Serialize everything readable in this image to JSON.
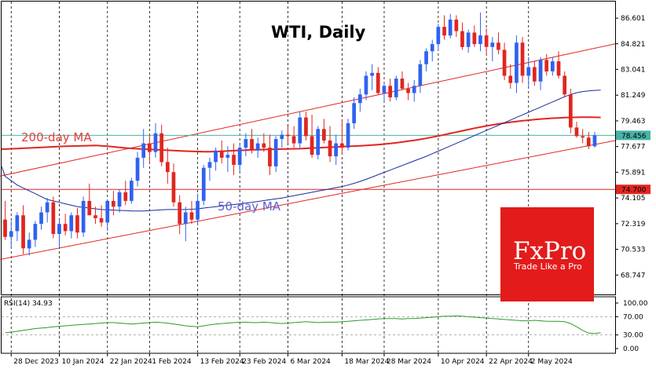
{
  "chart_data": [
    {
      "type": "candlestick",
      "title": "WTI, Daily",
      "y_ticks": [
        "86.601",
        "84.821",
        "83.041",
        "81.249",
        "79.463",
        "77.677",
        "75.891",
        "74.105",
        "72.319",
        "70.533",
        "68.747"
      ],
      "x_ticks": [
        "28 Dec 2023",
        "10 Jan 2024",
        "22 Jan 2024",
        "1 Feb 2024",
        "13 Feb 2024",
        "23 Feb 2024",
        "6 Mar 2024",
        "18 Mar 2024",
        "28 Mar 2024",
        "10 Apr 2024",
        "22 Apr 2024",
        "2 May 2024"
      ],
      "ylim": [
        67.4,
        87.7
      ],
      "current_price": "78.456",
      "reference_level": "74.700",
      "annotations": {
        "ma200_label": "200-day MA",
        "ma50_label": "50-day MA"
      },
      "candles": [
        {
          "o": 72.6,
          "h": 73.9,
          "l": 71.2,
          "c": 71.4
        },
        {
          "o": 71.4,
          "h": 72.5,
          "l": 70.6,
          "c": 71.8
        },
        {
          "o": 71.8,
          "h": 73.1,
          "l": 71.1,
          "c": 72.9
        },
        {
          "o": 72.9,
          "h": 73.6,
          "l": 70.2,
          "c": 70.6
        },
        {
          "o": 70.6,
          "h": 71.7,
          "l": 70.1,
          "c": 71.2
        },
        {
          "o": 71.2,
          "h": 72.5,
          "l": 70.7,
          "c": 72.3
        },
        {
          "o": 72.3,
          "h": 73.5,
          "l": 71.9,
          "c": 73.1
        },
        {
          "o": 73.1,
          "h": 74.1,
          "l": 72.4,
          "c": 73.8
        },
        {
          "o": 73.8,
          "h": 74.2,
          "l": 71.3,
          "c": 71.6
        },
        {
          "o": 71.6,
          "h": 72.6,
          "l": 70.6,
          "c": 72.3
        },
        {
          "o": 72.3,
          "h": 73.0,
          "l": 71.5,
          "c": 71.8
        },
        {
          "o": 71.8,
          "h": 73.1,
          "l": 71.3,
          "c": 72.9
        },
        {
          "o": 72.9,
          "h": 73.4,
          "l": 71.3,
          "c": 71.7
        },
        {
          "o": 71.7,
          "h": 74.2,
          "l": 71.4,
          "c": 73.9
        },
        {
          "o": 73.9,
          "h": 75.1,
          "l": 72.9,
          "c": 72.9
        },
        {
          "o": 72.9,
          "h": 73.5,
          "l": 72.3,
          "c": 72.7
        },
        {
          "o": 72.7,
          "h": 73.6,
          "l": 72.1,
          "c": 72.4
        },
        {
          "o": 72.4,
          "h": 74.0,
          "l": 71.8,
          "c": 73.9
        },
        {
          "o": 73.9,
          "h": 74.6,
          "l": 72.9,
          "c": 73.5
        },
        {
          "o": 73.5,
          "h": 74.7,
          "l": 73.1,
          "c": 74.5
        },
        {
          "o": 74.5,
          "h": 75.3,
          "l": 73.6,
          "c": 73.9
        },
        {
          "o": 73.9,
          "h": 75.5,
          "l": 73.7,
          "c": 75.3
        },
        {
          "o": 75.3,
          "h": 77.3,
          "l": 74.9,
          "c": 76.9
        },
        {
          "o": 76.9,
          "h": 78.9,
          "l": 76.2,
          "c": 77.9
        },
        {
          "o": 77.9,
          "h": 78.5,
          "l": 76.5,
          "c": 77.3
        },
        {
          "o": 77.3,
          "h": 79.3,
          "l": 76.9,
          "c": 78.6
        },
        {
          "o": 78.6,
          "h": 79.2,
          "l": 76.3,
          "c": 76.6
        },
        {
          "o": 76.6,
          "h": 77.6,
          "l": 75.1,
          "c": 75.9
        },
        {
          "o": 75.9,
          "h": 76.5,
          "l": 73.5,
          "c": 73.8
        },
        {
          "o": 73.8,
          "h": 74.3,
          "l": 71.6,
          "c": 72.3
        },
        {
          "o": 72.3,
          "h": 73.5,
          "l": 71.1,
          "c": 73.1
        },
        {
          "o": 73.1,
          "h": 73.9,
          "l": 72.3,
          "c": 72.6
        },
        {
          "o": 72.6,
          "h": 74.4,
          "l": 72.2,
          "c": 73.9
        },
        {
          "o": 73.9,
          "h": 76.4,
          "l": 73.6,
          "c": 76.2
        },
        {
          "o": 76.2,
          "h": 76.9,
          "l": 75.3,
          "c": 76.6
        },
        {
          "o": 76.6,
          "h": 77.6,
          "l": 76.0,
          "c": 77.4
        },
        {
          "o": 77.4,
          "h": 78.1,
          "l": 76.5,
          "c": 76.9
        },
        {
          "o": 76.9,
          "h": 77.7,
          "l": 75.9,
          "c": 77.1
        },
        {
          "o": 77.1,
          "h": 77.9,
          "l": 75.7,
          "c": 76.4
        },
        {
          "o": 76.4,
          "h": 77.8,
          "l": 75.9,
          "c": 77.6
        },
        {
          "o": 77.6,
          "h": 78.6,
          "l": 77.0,
          "c": 78.2
        },
        {
          "o": 78.2,
          "h": 78.9,
          "l": 77.2,
          "c": 77.4
        },
        {
          "o": 77.4,
          "h": 78.3,
          "l": 76.9,
          "c": 77.9
        },
        {
          "o": 77.9,
          "h": 78.6,
          "l": 77.3,
          "c": 77.6
        },
        {
          "o": 77.6,
          "h": 78.5,
          "l": 75.7,
          "c": 76.3
        },
        {
          "o": 76.3,
          "h": 78.4,
          "l": 75.9,
          "c": 78.2
        },
        {
          "o": 78.2,
          "h": 78.8,
          "l": 77.6,
          "c": 78.5
        },
        {
          "o": 78.5,
          "h": 79.1,
          "l": 77.9,
          "c": 78.4
        },
        {
          "o": 78.4,
          "h": 79.1,
          "l": 77.6,
          "c": 77.9
        },
        {
          "o": 77.9,
          "h": 80.1,
          "l": 77.5,
          "c": 79.7
        },
        {
          "o": 79.7,
          "h": 80.1,
          "l": 78.1,
          "c": 78.4
        },
        {
          "o": 78.4,
          "h": 79.9,
          "l": 76.9,
          "c": 77.1
        },
        {
          "o": 77.1,
          "h": 79.1,
          "l": 76.8,
          "c": 78.9
        },
        {
          "o": 78.9,
          "h": 79.6,
          "l": 77.9,
          "c": 78.1
        },
        {
          "o": 78.1,
          "h": 79.1,
          "l": 76.6,
          "c": 77.0
        },
        {
          "o": 77.0,
          "h": 78.5,
          "l": 76.4,
          "c": 77.9
        },
        {
          "o": 77.9,
          "h": 79.5,
          "l": 77.1,
          "c": 77.6
        },
        {
          "o": 77.6,
          "h": 79.6,
          "l": 77.4,
          "c": 79.3
        },
        {
          "o": 79.3,
          "h": 81.1,
          "l": 78.9,
          "c": 80.7
        },
        {
          "o": 80.7,
          "h": 81.7,
          "l": 80.1,
          "c": 81.3
        },
        {
          "o": 81.3,
          "h": 82.9,
          "l": 80.9,
          "c": 82.6
        },
        {
          "o": 82.6,
          "h": 83.4,
          "l": 81.6,
          "c": 82.8
        },
        {
          "o": 82.8,
          "h": 83.2,
          "l": 81.3,
          "c": 81.4
        },
        {
          "o": 81.4,
          "h": 82.1,
          "l": 80.8,
          "c": 81.9
        },
        {
          "o": 81.9,
          "h": 82.4,
          "l": 80.8,
          "c": 81.1
        },
        {
          "o": 81.1,
          "h": 82.6,
          "l": 80.9,
          "c": 82.4
        },
        {
          "o": 82.4,
          "h": 82.9,
          "l": 81.6,
          "c": 81.7
        },
        {
          "o": 81.7,
          "h": 82.1,
          "l": 80.9,
          "c": 81.4
        },
        {
          "o": 81.4,
          "h": 82.3,
          "l": 80.8,
          "c": 81.9
        },
        {
          "o": 81.9,
          "h": 83.7,
          "l": 81.4,
          "c": 83.4
        },
        {
          "o": 83.4,
          "h": 84.5,
          "l": 82.9,
          "c": 84.3
        },
        {
          "o": 84.3,
          "h": 85.1,
          "l": 83.6,
          "c": 84.8
        },
        {
          "o": 84.8,
          "h": 86.2,
          "l": 84.4,
          "c": 86.0
        },
        {
          "o": 86.0,
          "h": 86.8,
          "l": 85.1,
          "c": 85.4
        },
        {
          "o": 85.4,
          "h": 86.9,
          "l": 85.2,
          "c": 86.5
        },
        {
          "o": 86.5,
          "h": 86.8,
          "l": 85.3,
          "c": 85.7
        },
        {
          "o": 85.7,
          "h": 86.3,
          "l": 84.4,
          "c": 84.6
        },
        {
          "o": 84.6,
          "h": 85.8,
          "l": 84.2,
          "c": 85.6
        },
        {
          "o": 85.6,
          "h": 86.1,
          "l": 84.6,
          "c": 84.8
        },
        {
          "o": 84.8,
          "h": 87.0,
          "l": 84.3,
          "c": 85.4
        },
        {
          "o": 85.4,
          "h": 85.9,
          "l": 84.1,
          "c": 84.6
        },
        {
          "o": 84.6,
          "h": 85.3,
          "l": 83.6,
          "c": 84.9
        },
        {
          "o": 84.9,
          "h": 85.6,
          "l": 84.1,
          "c": 84.4
        },
        {
          "o": 84.4,
          "h": 84.9,
          "l": 82.3,
          "c": 82.6
        },
        {
          "o": 82.6,
          "h": 83.4,
          "l": 81.7,
          "c": 82.1
        },
        {
          "o": 82.1,
          "h": 85.4,
          "l": 81.4,
          "c": 84.9
        },
        {
          "o": 84.9,
          "h": 85.3,
          "l": 82.1,
          "c": 82.6
        },
        {
          "o": 82.6,
          "h": 83.9,
          "l": 81.8,
          "c": 83.2
        },
        {
          "o": 83.2,
          "h": 83.6,
          "l": 81.9,
          "c": 82.2
        },
        {
          "o": 82.2,
          "h": 83.9,
          "l": 81.6,
          "c": 83.7
        },
        {
          "o": 83.7,
          "h": 84.1,
          "l": 82.6,
          "c": 82.9
        },
        {
          "o": 82.9,
          "h": 83.9,
          "l": 82.6,
          "c": 83.6
        },
        {
          "o": 83.6,
          "h": 84.3,
          "l": 82.4,
          "c": 82.6
        },
        {
          "o": 82.6,
          "h": 82.9,
          "l": 81.1,
          "c": 81.3
        },
        {
          "o": 81.3,
          "h": 81.7,
          "l": 78.6,
          "c": 79.0
        },
        {
          "o": 79.0,
          "h": 79.4,
          "l": 78.3,
          "c": 78.4
        },
        {
          "o": 78.4,
          "h": 78.9,
          "l": 77.9,
          "c": 78.3
        },
        {
          "o": 78.3,
          "h": 78.7,
          "l": 77.5,
          "c": 77.7
        },
        {
          "o": 77.7,
          "h": 78.7,
          "l": 77.6,
          "c": 78.456
        }
      ],
      "ma200": [
        77.5,
        77.52,
        77.54,
        77.56,
        77.58,
        77.6,
        77.62,
        77.64,
        77.66,
        77.68,
        77.7,
        77.71,
        77.72,
        77.73,
        77.74,
        77.75,
        77.73,
        77.7,
        77.66,
        77.62,
        77.58,
        77.55,
        77.52,
        77.5,
        77.48,
        77.46,
        77.44,
        77.42,
        77.4,
        77.38,
        77.36,
        77.34,
        77.33,
        77.32,
        77.32,
        77.33,
        77.35,
        77.37,
        77.39,
        77.41,
        77.43,
        77.45,
        77.46,
        77.47,
        77.48,
        77.49,
        77.5,
        77.51,
        77.52,
        77.53,
        77.55,
        77.57,
        77.59,
        77.61,
        77.63,
        77.65,
        77.67,
        77.69,
        77.71,
        77.73,
        77.75,
        77.78,
        77.81,
        77.85,
        77.89,
        77.94,
        77.99,
        78.05,
        78.11,
        78.18,
        78.25,
        78.33,
        78.41,
        78.5,
        78.59,
        78.68,
        78.77,
        78.86,
        78.95,
        79.03,
        79.11,
        79.18,
        79.25,
        79.31,
        79.37,
        79.42,
        79.47,
        79.51,
        79.55,
        79.59,
        79.62,
        79.65,
        79.67,
        79.69,
        79.7,
        79.71,
        79.72,
        79.72,
        79.71,
        79.7
      ],
      "ma50": [
        75.6,
        75.3,
        75.0,
        74.8,
        74.6,
        74.4,
        74.2,
        74.0,
        73.9,
        73.8,
        73.7,
        73.6,
        73.5,
        73.45,
        73.4,
        73.35,
        73.3,
        73.28,
        73.26,
        73.24,
        73.22,
        73.2,
        73.2,
        73.2,
        73.22,
        73.25,
        73.28,
        73.3,
        73.3,
        73.3,
        73.3,
        73.32,
        73.35,
        73.4,
        73.45,
        73.5,
        73.55,
        73.6,
        73.65,
        73.7,
        73.75,
        73.8,
        73.86,
        73.92,
        73.98,
        74.04,
        74.1,
        74.18,
        74.26,
        74.34,
        74.42,
        74.5,
        74.58,
        74.66,
        74.74,
        74.82,
        74.9,
        75.0,
        75.12,
        75.25,
        75.4,
        75.56,
        75.72,
        75.88,
        76.04,
        76.2,
        76.36,
        76.52,
        76.68,
        76.84,
        77.0,
        77.18,
        77.36,
        77.54,
        77.72,
        77.9,
        78.08,
        78.26,
        78.44,
        78.62,
        78.8,
        78.98,
        79.16,
        79.34,
        79.52,
        79.7,
        79.88,
        80.06,
        80.24,
        80.42,
        80.6,
        80.78,
        80.96,
        81.14,
        81.3,
        81.42,
        81.5,
        81.55,
        81.58,
        81.6
      ],
      "channel": {
        "upper": [
          [
            0,
            75.7
          ],
          [
            99,
            84.6
          ]
        ],
        "lower": [
          [
            0,
            69.9
          ],
          [
            99,
            77.9
          ]
        ]
      },
      "bull_color": "#2f62ef",
      "bear_color": "#e0261f"
    },
    {
      "type": "line",
      "title": "RSI(14) 34.93",
      "y_ticks": [
        "100.00",
        "70.00",
        "30.00",
        "0.00"
      ],
      "ylim": [
        0,
        100
      ],
      "levels": [
        70,
        30
      ],
      "values": [
        35,
        36,
        38,
        40,
        42,
        44,
        45,
        46,
        48,
        49,
        50,
        51,
        52,
        53,
        54,
        55,
        56,
        57,
        57,
        56,
        55,
        54,
        55,
        56,
        57,
        58,
        57,
        56,
        54,
        52,
        50,
        49,
        48,
        50,
        52,
        54,
        55,
        56,
        57,
        58,
        58,
        57,
        57,
        58,
        57,
        56,
        55,
        56,
        57,
        58,
        59,
        58,
        57,
        58,
        58,
        58,
        59,
        60,
        61,
        62,
        63,
        64,
        65,
        66,
        66,
        66,
        65,
        66,
        66,
        67,
        68,
        69,
        70,
        71,
        71,
        72,
        71,
        70,
        69,
        68,
        67,
        66,
        65,
        64,
        63,
        62,
        61,
        61,
        62,
        61,
        60,
        60,
        60,
        59,
        55,
        48,
        40,
        34,
        33,
        34.93
      ],
      "color": "#2c9a2c"
    }
  ],
  "branding": {
    "name": "FxPro",
    "tagline": "Trade Like a Pro",
    "color": "#e31b1b"
  }
}
